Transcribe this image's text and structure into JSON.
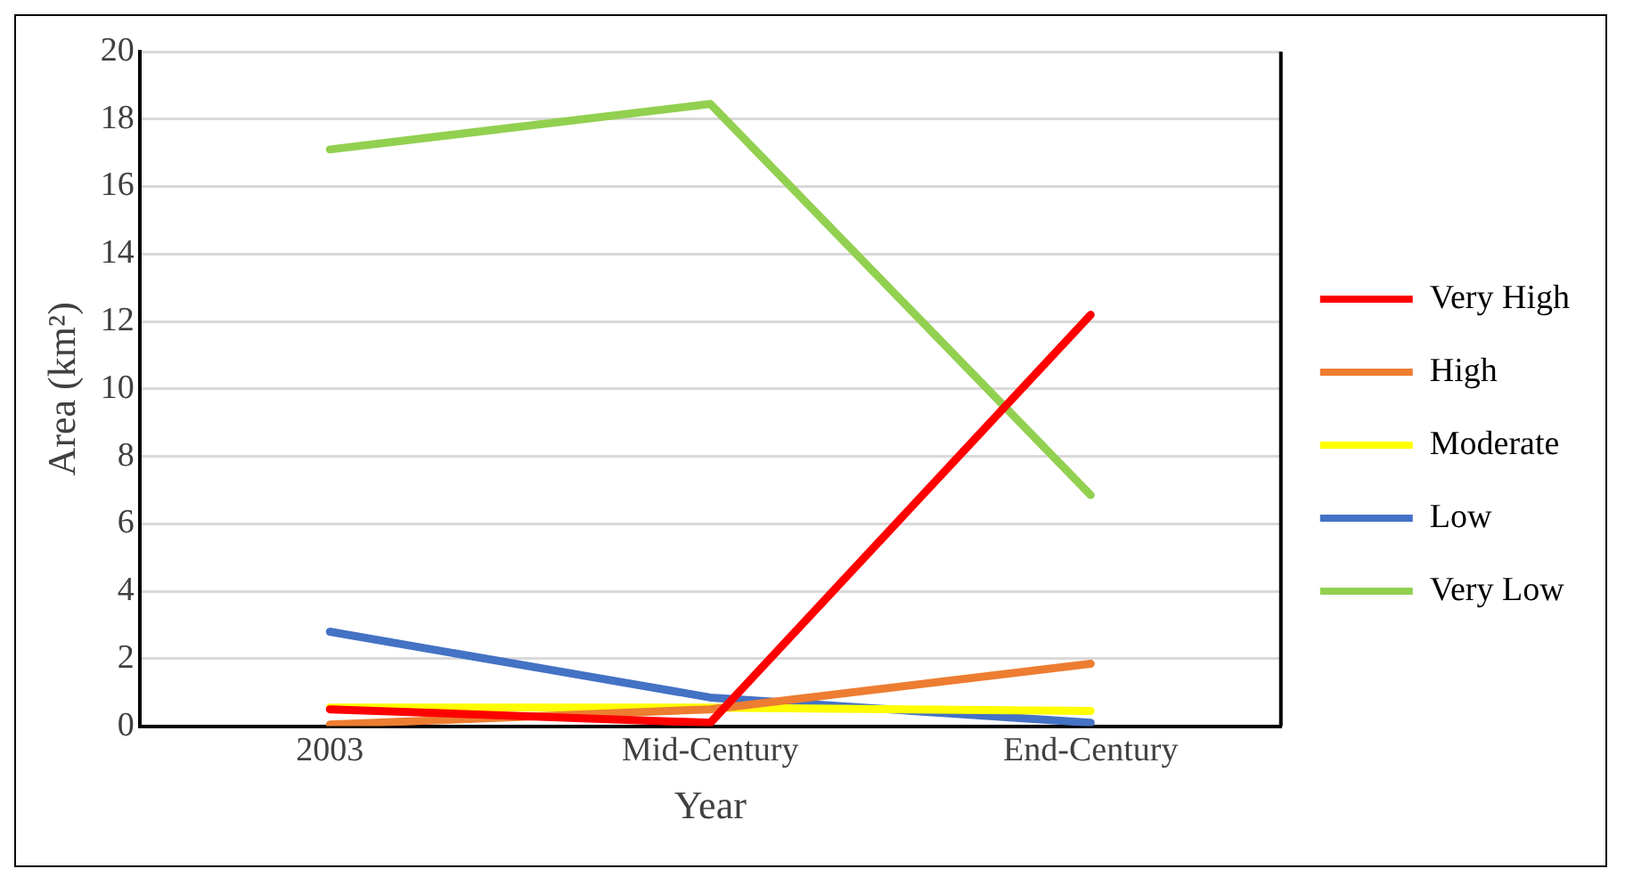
{
  "chart_data": {
    "type": "line",
    "xlabel": "Year",
    "ylabel": "Area (km²)",
    "categories": [
      "2003",
      "Mid-Century",
      "End-Century"
    ],
    "series": [
      {
        "name": "Very High",
        "color": "#ff0000",
        "values": [
          0.5,
          0.1,
          12.2
        ]
      },
      {
        "name": "High",
        "color": "#ed7d31",
        "values": [
          0.05,
          0.5,
          1.85
        ]
      },
      {
        "name": "Moderate",
        "color": "#ffff00",
        "values": [
          0.55,
          0.55,
          0.45
        ]
      },
      {
        "name": "Low",
        "color": "#4472c4",
        "values": [
          2.8,
          0.85,
          0.1
        ]
      },
      {
        "name": "Very Low",
        "color": "#92d050",
        "values": [
          17.1,
          18.45,
          6.85
        ]
      }
    ],
    "ylim": [
      0,
      20
    ],
    "yticks": [
      0,
      2,
      4,
      6,
      8,
      10,
      12,
      14,
      16,
      18,
      20
    ],
    "grid": "y",
    "legend": "right",
    "marker": "none",
    "line_style": "solid"
  }
}
